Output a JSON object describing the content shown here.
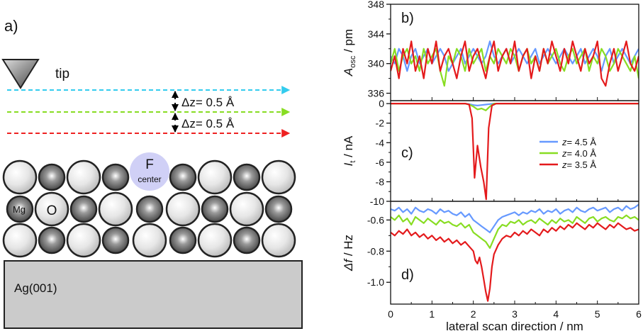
{
  "schematic": {
    "panel_label": "a)",
    "tip_label": "tip",
    "dz1_label": "Δz= 0.5 Å",
    "dz2_label": "Δz= 0.5 Å",
    "fcenter_label_top": "F",
    "fcenter_label_bottom": "center",
    "mg_label": "Mg",
    "o_label": "O",
    "substrate_label": "Ag(001)",
    "scan_line_colors": [
      "#33ccee",
      "#88dd22",
      "#ee2222"
    ]
  },
  "colors": {
    "z45": "#6699ff",
    "z40": "#88dd22",
    "z35": "#e41a1c"
  },
  "chart_data": [
    {
      "type": "line",
      "panel_label": "b)",
      "ylabel_main": "A",
      "ylabel_sub": "osc",
      "ylabel_unit": " / pm",
      "xlim": [
        0,
        6
      ],
      "ylim": [
        335,
        348
      ],
      "yticks": [
        336,
        340,
        344,
        348
      ],
      "ytick_labels": [
        "336",
        "340",
        "344",
        "348"
      ],
      "series": [
        {
          "name": "z= 4.5 Å",
          "x": [
            0,
            0.1,
            0.2,
            0.3,
            0.4,
            0.5,
            0.6,
            0.7,
            0.8,
            0.9,
            1.0,
            1.1,
            1.2,
            1.3,
            1.4,
            1.5,
            1.6,
            1.7,
            1.8,
            1.9,
            2.0,
            2.1,
            2.2,
            2.3,
            2.4,
            2.5,
            2.6,
            2.7,
            2.8,
            2.9,
            3.0,
            3.1,
            3.2,
            3.3,
            3.4,
            3.5,
            3.6,
            3.7,
            3.8,
            3.9,
            4.0,
            4.1,
            4.2,
            4.3,
            4.4,
            4.5,
            4.6,
            4.7,
            4.8,
            4.9,
            5.0,
            5.1,
            5.2,
            5.3,
            5.4,
            5.5,
            5.6,
            5.7,
            5.8,
            5.9,
            6.0
          ],
          "values": [
            341,
            340,
            342,
            341,
            339,
            341,
            342,
            340,
            341,
            342,
            340,
            341,
            342,
            341,
            339,
            340,
            341,
            342,
            340,
            341,
            342,
            341,
            340,
            341,
            343,
            341,
            340,
            341,
            342,
            340,
            341,
            342,
            341,
            340,
            341,
            342,
            340,
            341,
            342,
            341,
            340,
            341,
            342,
            341,
            340,
            341,
            342,
            340,
            341,
            342,
            341,
            339,
            341,
            342,
            340,
            341,
            342,
            341,
            340,
            341,
            342
          ]
        },
        {
          "name": "z= 4.0 Å",
          "x": [
            0,
            0.1,
            0.2,
            0.3,
            0.4,
            0.5,
            0.6,
            0.7,
            0.8,
            0.9,
            1.0,
            1.1,
            1.2,
            1.3,
            1.4,
            1.5,
            1.6,
            1.7,
            1.8,
            1.9,
            2.0,
            2.1,
            2.2,
            2.3,
            2.4,
            2.5,
            2.6,
            2.7,
            2.8,
            2.9,
            3.0,
            3.1,
            3.2,
            3.3,
            3.4,
            3.5,
            3.6,
            3.7,
            3.8,
            3.9,
            4.0,
            4.1,
            4.2,
            4.3,
            4.4,
            4.5,
            4.6,
            4.7,
            4.8,
            4.9,
            5.0,
            5.1,
            5.2,
            5.3,
            5.4,
            5.5,
            5.6,
            5.7,
            5.8,
            5.9,
            6.0
          ],
          "values": [
            340,
            342,
            339,
            341,
            342,
            340,
            341,
            339,
            342,
            340,
            341,
            342,
            339,
            337,
            341,
            340,
            342,
            341,
            339,
            342,
            340,
            341,
            342,
            339,
            341,
            340,
            342,
            341,
            340,
            342,
            341,
            339,
            341,
            342,
            340,
            341,
            339,
            342,
            340,
            341,
            342,
            340,
            339,
            341,
            342,
            340,
            341,
            342,
            339,
            341,
            340,
            342,
            341,
            339,
            340,
            342,
            341,
            340,
            339,
            341,
            338
          ]
        },
        {
          "name": "z= 3.5 Å",
          "x": [
            0,
            0.1,
            0.2,
            0.3,
            0.4,
            0.5,
            0.6,
            0.7,
            0.8,
            0.9,
            1.0,
            1.1,
            1.2,
            1.3,
            1.4,
            1.5,
            1.6,
            1.7,
            1.8,
            1.9,
            2.0,
            2.1,
            2.2,
            2.3,
            2.4,
            2.5,
            2.6,
            2.7,
            2.8,
            2.9,
            3.0,
            3.1,
            3.2,
            3.3,
            3.4,
            3.5,
            3.6,
            3.7,
            3.8,
            3.9,
            4.0,
            4.1,
            4.2,
            4.3,
            4.4,
            4.5,
            4.6,
            4.7,
            4.8,
            4.9,
            5.0,
            5.1,
            5.2,
            5.3,
            5.4,
            5.5,
            5.6,
            5.7,
            5.8,
            5.9,
            6.0
          ],
          "values": [
            339,
            341,
            338,
            342,
            340,
            343,
            339,
            341,
            338,
            342,
            340,
            343,
            339,
            341,
            342,
            340,
            338,
            341,
            343,
            339,
            341,
            342,
            340,
            338,
            341,
            343,
            339,
            341,
            342,
            340,
            343,
            339,
            341,
            342,
            338,
            341,
            339,
            342,
            340,
            343,
            341,
            339,
            342,
            340,
            343,
            341,
            339,
            342,
            340,
            341,
            343,
            338,
            337,
            340,
            342,
            339,
            341,
            343,
            340,
            339,
            341
          ]
        }
      ]
    },
    {
      "type": "line",
      "panel_label": "c)",
      "ylabel_main": "I",
      "ylabel_sub": "t",
      "ylabel_unit": " / nA",
      "xlim": [
        0,
        6
      ],
      "ylim": [
        -10,
        0.3
      ],
      "yticks": [
        0,
        -2,
        -4,
        -6,
        -8,
        -10
      ],
      "ytick_labels": [
        "0",
        "-2",
        "-4",
        "-6",
        "-8",
        "-10"
      ],
      "legend_position": "right",
      "series": [
        {
          "name": "z= 4.5 Å",
          "x": [
            0,
            1.8,
            1.9,
            2.0,
            2.1,
            2.2,
            2.3,
            2.4,
            2.5,
            6
          ],
          "values": [
            0,
            0,
            -0.05,
            -0.15,
            -0.2,
            -0.15,
            -0.1,
            -0.05,
            0,
            0
          ]
        },
        {
          "name": "z= 4.0 Å",
          "x": [
            0,
            1.8,
            1.9,
            2.0,
            2.1,
            2.2,
            2.3,
            2.4,
            2.5,
            6
          ],
          "values": [
            0,
            0,
            -0.1,
            -0.3,
            -0.6,
            -0.5,
            -0.7,
            -0.3,
            0,
            0
          ]
        },
        {
          "name": "z= 3.5 Å",
          "x": [
            0,
            1.8,
            1.9,
            1.97,
            2.03,
            2.1,
            2.18,
            2.25,
            2.31,
            2.37,
            2.45,
            2.55,
            6
          ],
          "values": [
            0,
            0,
            -0.1,
            -1.5,
            -7.6,
            -4.3,
            -6.5,
            -8.0,
            -9.8,
            -2.5,
            -0.2,
            0,
            0
          ]
        }
      ]
    },
    {
      "type": "line",
      "panel_label": "d)",
      "ylabel_main": "Δf",
      "ylabel_sub": "",
      "ylabel_unit": " / Hz",
      "xlabel": "lateral scan direction / nm",
      "xlim": [
        0,
        6
      ],
      "xticks": [
        0,
        1,
        2,
        3,
        4,
        5,
        6
      ],
      "xtick_labels": [
        "0",
        "1",
        "2",
        "3",
        "4",
        "5",
        "6"
      ],
      "ylim": [
        -1.14,
        -0.48
      ],
      "yticks": [
        -0.6,
        -0.8,
        -1.0
      ],
      "ytick_labels": [
        "-0.6",
        "-0.8",
        "-1.0"
      ],
      "series": [
        {
          "name": "z= 4.5 Å",
          "x": [
            0,
            0.1,
            0.2,
            0.3,
            0.4,
            0.5,
            0.6,
            0.7,
            0.8,
            0.9,
            1.0,
            1.1,
            1.2,
            1.3,
            1.4,
            1.5,
            1.6,
            1.7,
            1.8,
            1.9,
            2.0,
            2.1,
            2.2,
            2.3,
            2.4,
            2.5,
            2.6,
            2.7,
            2.8,
            2.9,
            3.0,
            3.1,
            3.2,
            3.3,
            3.4,
            3.5,
            3.6,
            3.7,
            3.8,
            3.9,
            4.0,
            4.1,
            4.2,
            4.3,
            4.4,
            4.5,
            4.6,
            4.7,
            4.8,
            4.9,
            5.0,
            5.1,
            5.2,
            5.3,
            5.4,
            5.5,
            5.6,
            5.7,
            5.8,
            5.9,
            6.0
          ],
          "values": [
            -0.53,
            -0.54,
            -0.52,
            -0.55,
            -0.53,
            -0.56,
            -0.52,
            -0.54,
            -0.55,
            -0.53,
            -0.54,
            -0.56,
            -0.53,
            -0.55,
            -0.54,
            -0.56,
            -0.57,
            -0.55,
            -0.58,
            -0.56,
            -0.6,
            -0.62,
            -0.64,
            -0.66,
            -0.68,
            -0.64,
            -0.6,
            -0.58,
            -0.57,
            -0.56,
            -0.55,
            -0.57,
            -0.55,
            -0.56,
            -0.54,
            -0.55,
            -0.53,
            -0.56,
            -0.54,
            -0.55,
            -0.53,
            -0.56,
            -0.54,
            -0.53,
            -0.55,
            -0.52,
            -0.54,
            -0.55,
            -0.53,
            -0.52,
            -0.54,
            -0.53,
            -0.52,
            -0.55,
            -0.53,
            -0.52,
            -0.54,
            -0.51,
            -0.53,
            -0.52,
            -0.5
          ]
        },
        {
          "name": "z= 4.0 Å",
          "x": [
            0,
            0.1,
            0.2,
            0.3,
            0.4,
            0.5,
            0.6,
            0.7,
            0.8,
            0.9,
            1.0,
            1.1,
            1.2,
            1.3,
            1.4,
            1.5,
            1.6,
            1.7,
            1.8,
            1.9,
            2.0,
            2.1,
            2.2,
            2.3,
            2.4,
            2.5,
            2.6,
            2.7,
            2.8,
            2.9,
            3.0,
            3.1,
            3.2,
            3.3,
            3.4,
            3.5,
            3.6,
            3.7,
            3.8,
            3.9,
            4.0,
            4.1,
            4.2,
            4.3,
            4.4,
            4.5,
            4.6,
            4.7,
            4.8,
            4.9,
            5.0,
            5.1,
            5.2,
            5.3,
            5.4,
            5.5,
            5.6,
            5.7,
            5.8,
            5.9,
            6.0
          ],
          "values": [
            -0.58,
            -0.6,
            -0.57,
            -0.61,
            -0.59,
            -0.63,
            -0.58,
            -0.6,
            -0.62,
            -0.59,
            -0.61,
            -0.63,
            -0.6,
            -0.62,
            -0.61,
            -0.63,
            -0.64,
            -0.62,
            -0.65,
            -0.63,
            -0.68,
            -0.7,
            -0.72,
            -0.74,
            -0.78,
            -0.72,
            -0.66,
            -0.63,
            -0.64,
            -0.61,
            -0.62,
            -0.6,
            -0.63,
            -0.61,
            -0.6,
            -0.62,
            -0.59,
            -0.61,
            -0.63,
            -0.6,
            -0.62,
            -0.59,
            -0.61,
            -0.6,
            -0.62,
            -0.58,
            -0.6,
            -0.62,
            -0.59,
            -0.58,
            -0.61,
            -0.59,
            -0.58,
            -0.6,
            -0.61,
            -0.58,
            -0.59,
            -0.57,
            -0.59,
            -0.58,
            -0.6
          ]
        },
        {
          "name": "z= 3.5 Å",
          "x": [
            0,
            0.1,
            0.2,
            0.3,
            0.4,
            0.5,
            0.6,
            0.7,
            0.8,
            0.9,
            1.0,
            1.1,
            1.2,
            1.3,
            1.4,
            1.5,
            1.6,
            1.7,
            1.8,
            1.9,
            2.0,
            2.05,
            2.1,
            2.15,
            2.2,
            2.25,
            2.3,
            2.35,
            2.4,
            2.45,
            2.5,
            2.6,
            2.7,
            2.8,
            2.9,
            3.0,
            3.1,
            3.2,
            3.3,
            3.4,
            3.5,
            3.6,
            3.7,
            3.8,
            3.9,
            4.0,
            4.1,
            4.2,
            4.3,
            4.4,
            4.5,
            4.6,
            4.7,
            4.8,
            4.9,
            5.0,
            5.1,
            5.2,
            5.3,
            5.4,
            5.5,
            5.6,
            5.7,
            5.8,
            5.9,
            6.0
          ],
          "values": [
            -0.68,
            -0.7,
            -0.67,
            -0.69,
            -0.66,
            -0.7,
            -0.68,
            -0.71,
            -0.69,
            -0.72,
            -0.7,
            -0.73,
            -0.71,
            -0.74,
            -0.72,
            -0.75,
            -0.73,
            -0.76,
            -0.74,
            -0.77,
            -0.8,
            -0.86,
            -0.88,
            -0.84,
            -0.9,
            -0.98,
            -1.06,
            -1.12,
            -1.04,
            -0.9,
            -0.82,
            -0.76,
            -0.72,
            -0.7,
            -0.71,
            -0.68,
            -0.7,
            -0.67,
            -0.69,
            -0.66,
            -0.68,
            -0.7,
            -0.66,
            -0.68,
            -0.65,
            -0.67,
            -0.64,
            -0.66,
            -0.63,
            -0.65,
            -0.62,
            -0.64,
            -0.66,
            -0.63,
            -0.65,
            -0.62,
            -0.64,
            -0.66,
            -0.63,
            -0.65,
            -0.62,
            -0.64,
            -0.66,
            -0.65,
            -0.67,
            -0.66
          ]
        }
      ]
    }
  ]
}
